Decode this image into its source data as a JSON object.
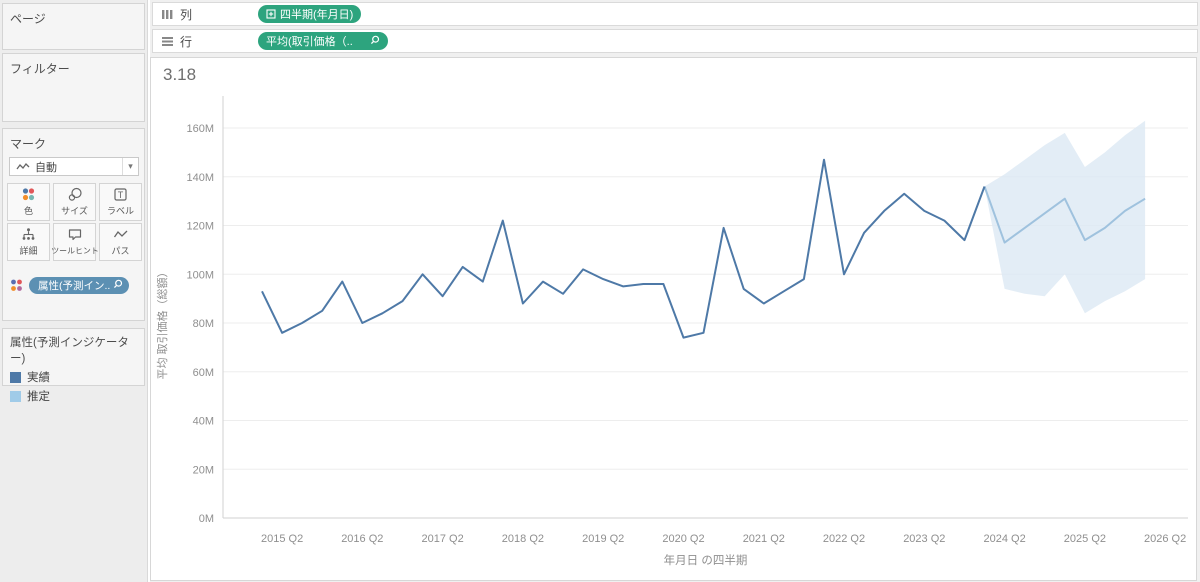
{
  "pages_panel": {
    "title": "ページ"
  },
  "filters_panel": {
    "title": "フィルター"
  },
  "marks_panel": {
    "title": "マーク",
    "mark_type_label": "自動",
    "buttons": [
      {
        "label": "色"
      },
      {
        "label": "サイズ"
      },
      {
        "label": "ラベル"
      },
      {
        "label": "詳細"
      },
      {
        "label": "ツールヒント"
      },
      {
        "label": "パス"
      }
    ],
    "color_pill": {
      "label": "属性(予測イン..",
      "color": "#5c90b3"
    }
  },
  "legend_panel": {
    "title": "属性(予測インジケーター)",
    "items": [
      {
        "label": "実績",
        "color": "#4e79a7"
      },
      {
        "label": "推定",
        "color": "#a0cbe8"
      }
    ]
  },
  "shelves": {
    "columns": {
      "label": "列",
      "pill": "四半期(年月日)"
    },
    "rows": {
      "label": "行",
      "pill": "平均(取引価格（.."
    }
  },
  "sheet": {
    "title": "3.18"
  },
  "pill_colors": {
    "dimension_green": "#2da47e"
  },
  "chart_data": {
    "type": "line",
    "title": "3.18",
    "xlabel": "年月日 の四半期",
    "ylabel": "平均 取引価格（総額）",
    "value_unit": "M (millions)",
    "ylim": [
      0,
      160
    ],
    "y_tick_step": 20,
    "y_tick_labels": [
      "0M",
      "20M",
      "40M",
      "60M",
      "80M",
      "100M",
      "120M",
      "140M",
      "160M"
    ],
    "x_start_quarter": "2015 Q1",
    "x_end_quarter": "2026 Q2",
    "x_tick_labels": [
      "2015 Q2",
      "2016 Q2",
      "2017 Q2",
      "2018 Q2",
      "2019 Q2",
      "2020 Q2",
      "2021 Q2",
      "2022 Q2",
      "2023 Q2",
      "2024 Q2",
      "2025 Q2",
      "2026 Q2"
    ],
    "x_tick_first_index": 1,
    "x_tick_every": 4,
    "grid": "horizontal-only",
    "legend_position": "left-panel",
    "series": [
      {
        "name": "実績",
        "role": "actual",
        "color": "#4e79a7",
        "start_index": 0,
        "values": [
          93,
          76,
          80,
          85,
          97,
          80,
          84,
          89,
          100,
          91,
          103,
          97,
          122,
          88,
          97,
          92,
          102,
          98,
          95,
          96,
          96,
          74,
          76,
          119,
          94,
          88,
          93,
          98,
          147,
          100,
          117,
          126,
          133,
          126,
          122,
          114,
          136
        ]
      },
      {
        "name": "推定",
        "role": "forecast",
        "color": "#9fc2de",
        "start_index": 36,
        "values": [
          136,
          113,
          119,
          125,
          131,
          114,
          119,
          126,
          131
        ]
      }
    ],
    "band": {
      "name": "forecast-interval",
      "color": "#dce8f4",
      "start_index": 36,
      "upper": [
        136,
        141,
        147,
        153,
        158,
        144,
        150,
        157,
        163
      ],
      "lower": [
        136,
        94,
        92,
        91,
        100,
        84,
        89,
        93,
        98
      ]
    }
  }
}
